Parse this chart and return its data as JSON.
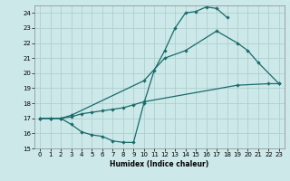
{
  "xlabel": "Humidex (Indice chaleur)",
  "xlim": [
    -0.5,
    23.5
  ],
  "ylim": [
    15,
    24.5
  ],
  "xticks": [
    0,
    1,
    2,
    3,
    4,
    5,
    6,
    7,
    8,
    9,
    10,
    11,
    12,
    13,
    14,
    15,
    16,
    17,
    18,
    19,
    20,
    21,
    22,
    23
  ],
  "yticks": [
    15,
    16,
    17,
    18,
    19,
    20,
    21,
    22,
    23,
    24
  ],
  "bg_color": "#cce8e8",
  "grid_color": "#aacccc",
  "line_color": "#1a6b6b",
  "line1_x": [
    0,
    1,
    2,
    3,
    4,
    5,
    6,
    7,
    8,
    9,
    10,
    11,
    12,
    13,
    14,
    15,
    16,
    17,
    18
  ],
  "line1_y": [
    17,
    17,
    17,
    16.6,
    16.1,
    15.9,
    15.8,
    15.5,
    15.4,
    15.4,
    18.0,
    20.2,
    21.5,
    23.0,
    24.0,
    24.1,
    24.4,
    24.3,
    23.7
  ],
  "line2_x": [
    0,
    1,
    2,
    3,
    4,
    5,
    6,
    7,
    8,
    9,
    10,
    19,
    22,
    23
  ],
  "line2_y": [
    17,
    17,
    17,
    17.1,
    17.3,
    17.4,
    17.5,
    17.6,
    17.7,
    17.9,
    18.1,
    19.2,
    19.3,
    19.3
  ],
  "line3_x": [
    0,
    1,
    2,
    3,
    10,
    12,
    14,
    17,
    19,
    20,
    21,
    23
  ],
  "line3_y": [
    17,
    17,
    17,
    17.2,
    19.5,
    21.0,
    21.5,
    22.8,
    22.0,
    21.5,
    20.7,
    19.3
  ]
}
